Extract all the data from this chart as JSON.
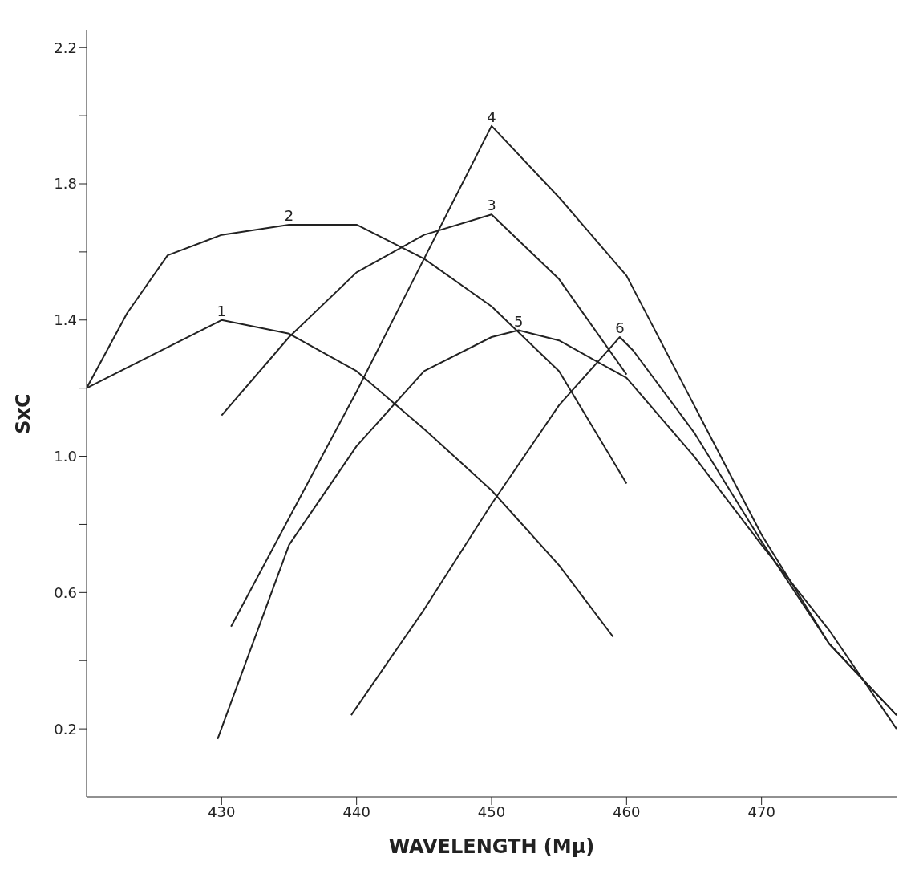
{
  "chart_data": {
    "type": "line",
    "xlabel": "WAVELENGTH (Mμ)",
    "ylabel": "SxC",
    "xlim": [
      420,
      480
    ],
    "xticks": [
      430,
      440,
      450,
      460,
      470
    ],
    "ylim": [
      0,
      2.25
    ],
    "yticks": [
      {
        "value": 0.2,
        "label": "0.2"
      },
      {
        "value": 0.4,
        "label": null
      },
      {
        "value": 0.6,
        "label": "0.6"
      },
      {
        "value": 0.8,
        "label": null
      },
      {
        "value": 1.0,
        "label": "1.0"
      },
      {
        "value": 1.2,
        "label": null
      },
      {
        "value": 1.4,
        "label": "1.4"
      },
      {
        "value": 1.6,
        "label": null
      },
      {
        "value": 1.8,
        "label": "1.8"
      },
      {
        "value": 2.0,
        "label": null
      },
      {
        "value": 2.2,
        "label": "2.2"
      }
    ],
    "grid": false,
    "legend": false,
    "marker": "none",
    "line_style": "solid",
    "series": [
      {
        "name": "1",
        "color": "#222222",
        "x": [
          420,
          425,
          430,
          435,
          440,
          445,
          450,
          455,
          459
        ],
        "values": [
          1.2,
          1.3,
          1.4,
          1.36,
          1.25,
          1.08,
          0.9,
          0.68,
          0.47
        ]
      },
      {
        "name": "2",
        "color": "#222222",
        "x": [
          420,
          423,
          426,
          430,
          435,
          440,
          445,
          450,
          455,
          460
        ],
        "values": [
          1.2,
          1.42,
          1.59,
          1.65,
          1.68,
          1.68,
          1.58,
          1.44,
          1.25,
          0.92
        ]
      },
      {
        "name": "3",
        "color": "#222222",
        "x": [
          430,
          435,
          440,
          445,
          450,
          455,
          460
        ],
        "values": [
          1.12,
          1.35,
          1.54,
          1.65,
          1.71,
          1.52,
          1.24
        ]
      },
      {
        "name": "4",
        "color": "#222222",
        "x": [
          430.7,
          440,
          445,
          450,
          455,
          460,
          465,
          470,
          475,
          480
        ],
        "values": [
          0.5,
          1.19,
          1.58,
          1.97,
          1.76,
          1.53,
          1.15,
          0.77,
          0.45,
          0.24
        ]
      },
      {
        "name": "5",
        "color": "#222222",
        "x": [
          429.7,
          435,
          440,
          445,
          450,
          452,
          455,
          460,
          465,
          470,
          475,
          480
        ],
        "values": [
          0.17,
          0.74,
          1.03,
          1.25,
          1.35,
          1.37,
          1.34,
          1.23,
          1.0,
          0.74,
          0.49,
          0.2
        ]
      },
      {
        "name": "6",
        "color": "#222222",
        "x": [
          439.6,
          445,
          450,
          455,
          459.5,
          460.5,
          465,
          470,
          475,
          480
        ],
        "values": [
          0.24,
          0.55,
          0.86,
          1.15,
          1.35,
          1.31,
          1.07,
          0.75,
          0.45,
          0.24
        ]
      }
    ]
  }
}
